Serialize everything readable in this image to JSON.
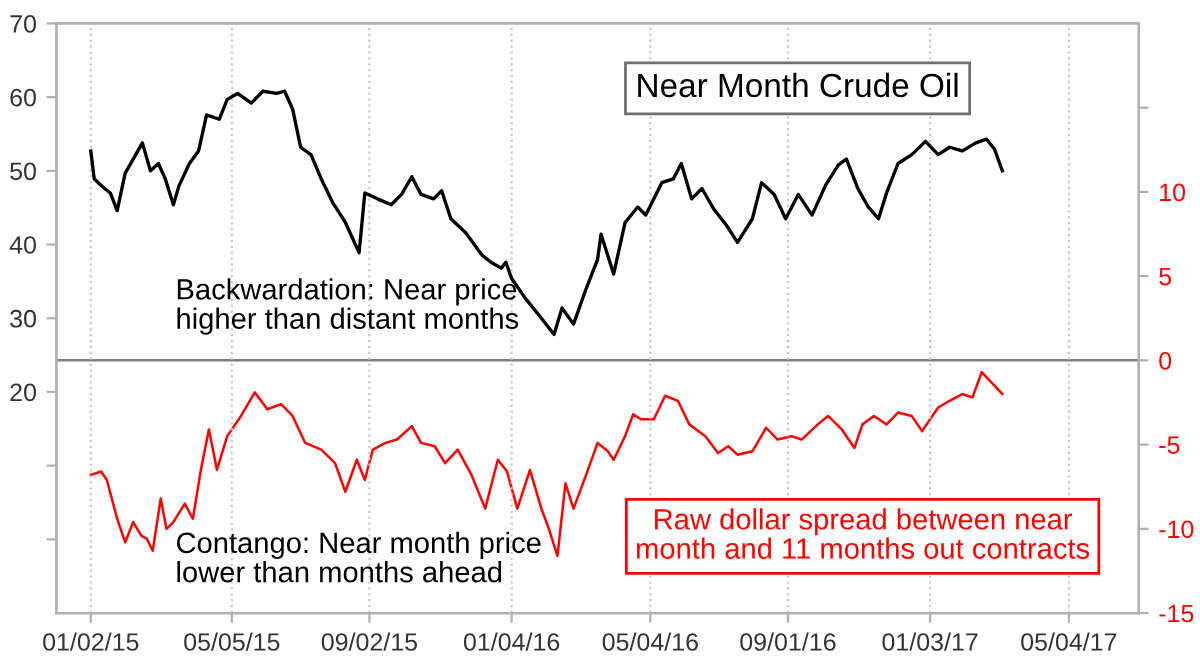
{
  "chart_data": {
    "type": "line",
    "title": "Near Month Crude Oil",
    "xlim": [
      "2014-12-03",
      "2017-07-04"
    ],
    "xticks": [
      {
        "value": "2015-01-02",
        "label": "01/02/15"
      },
      {
        "value": "2015-05-05",
        "label": "05/05/15"
      },
      {
        "value": "2015-09-02",
        "label": "09/02/15"
      },
      {
        "value": "2016-01-04",
        "label": "01/04/16"
      },
      {
        "value": "2016-05-04",
        "label": "05/04/16"
      },
      {
        "value": "2016-09-01",
        "label": "09/01/16"
      },
      {
        "value": "2017-01-03",
        "label": "01/03/17"
      },
      {
        "value": "2017-05-04",
        "label": "05/04/17"
      }
    ],
    "ylim": [
      -10,
      70
    ],
    "yticks": [
      {
        "value": 0,
        "label": null
      },
      {
        "value": 10,
        "label": null
      },
      20,
      30,
      40,
      50,
      60,
      70
    ],
    "y2lim": [
      -15,
      20
    ],
    "y2ticks": [
      -15,
      -10,
      -5,
      0,
      5,
      10,
      {
        "value": 15,
        "label": null
      }
    ],
    "grid": "x",
    "ref_lines": [
      {
        "axis": "y2",
        "value": 0,
        "label": null,
        "color": "#808080"
      }
    ],
    "annotations": [
      "Backwardation: Near price\nhigher than distant months",
      "Contango: Near month price\nlower than months ahead",
      "Raw dollar spread between near\nmonth and 11 months out contracts"
    ],
    "series": [
      {
        "color": "#000000",
        "x": [
          "2015-01-02",
          "2015-01-05",
          "2015-01-14",
          "2015-01-19",
          "2015-01-25",
          "2015-02-01",
          "2015-02-08",
          "2015-02-16",
          "2015-02-23",
          "2015-03-02",
          "2015-03-08",
          "2015-03-15",
          "2015-03-20",
          "2015-03-29",
          "2015-04-06",
          "2015-04-13",
          "2015-04-24",
          "2015-05-01",
          "2015-05-10",
          "2015-05-22",
          "2015-06-01",
          "2015-06-13",
          "2015-06-20",
          "2015-06-27",
          "2015-07-04",
          "2015-07-13",
          "2015-07-22",
          "2015-08-01",
          "2015-08-12",
          "2015-08-24",
          "2015-08-29",
          "2015-09-09",
          "2015-09-21",
          "2015-09-30",
          "2015-10-09",
          "2015-10-17",
          "2015-10-28",
          "2015-11-04",
          "2015-11-12",
          "2015-11-25",
          "2015-12-09",
          "2015-12-17",
          "2015-12-26",
          "2015-12-30",
          "2016-01-04",
          "2016-01-16",
          "2016-01-30",
          "2016-02-10",
          "2016-02-17",
          "2016-02-27",
          "2016-03-09",
          "2016-03-19",
          "2016-03-22",
          "2016-04-02",
          "2016-04-12",
          "2016-04-23",
          "2016-04-30",
          "2016-05-14",
          "2016-05-24",
          "2016-05-31",
          "2016-06-09",
          "2016-06-18",
          "2016-06-28",
          "2016-07-09",
          "2016-07-19",
          "2016-08-01",
          "2016-08-09",
          "2016-08-20",
          "2016-08-30",
          "2016-09-10",
          "2016-09-22",
          "2016-10-04",
          "2016-10-15",
          "2016-10-22",
          "2016-11-01",
          "2016-11-10",
          "2016-11-19",
          "2016-11-26",
          "2016-12-06",
          "2016-12-18",
          "2016-12-30",
          "2017-01-10",
          "2017-01-20",
          "2017-01-31",
          "2017-02-12",
          "2017-02-21",
          "2017-02-28",
          "2017-03-07"
        ],
        "values": [
          52.7,
          48.9,
          47.6,
          47,
          44.6,
          49.7,
          51.6,
          53.8,
          50,
          51,
          48.9,
          45.4,
          48,
          51,
          52.7,
          57.6,
          57,
          59.7,
          60.5,
          59.2,
          60.8,
          60.5,
          60.8,
          58.4,
          53.2,
          52.2,
          48.9,
          45.7,
          43,
          38.9,
          47,
          46.2,
          45.4,
          46.8,
          49.2,
          46.8,
          46.2,
          47.3,
          43.5,
          41.6,
          38.6,
          37.6,
          36.8,
          37.6,
          35.4,
          32.7,
          30,
          27.8,
          31.4,
          29.2,
          34,
          38,
          41.4,
          36,
          43,
          45.1,
          44,
          48.4,
          48.9,
          51,
          46.2,
          47.6,
          44.9,
          42.7,
          40.3,
          43.5,
          48.4,
          46.8,
          43.5,
          46.8,
          44,
          48.1,
          50.8,
          51.6,
          47.6,
          45.1,
          43.5,
          47,
          51,
          52.2,
          54,
          52.2,
          53.2,
          52.7,
          53.8,
          54.3,
          53,
          50
        ]
      },
      {
        "color": "#ff0000",
        "axis": "y2",
        "x": [
          "2015-01-02",
          "2015-01-11",
          "2015-01-16",
          "2015-01-25",
          "2015-02-01",
          "2015-02-08",
          "2015-02-15",
          "2015-02-20",
          "2015-02-25",
          "2015-03-04",
          "2015-03-09",
          "2015-03-15",
          "2015-03-25",
          "2015-04-01",
          "2015-04-08",
          "2015-04-15",
          "2015-04-22",
          "2015-05-01",
          "2015-05-13",
          "2015-05-25",
          "2015-06-05",
          "2015-06-17",
          "2015-06-27",
          "2015-07-08",
          "2015-07-22",
          "2015-08-03",
          "2015-08-12",
          "2015-08-22",
          "2015-08-29",
          "2015-09-05",
          "2015-09-16",
          "2015-09-26",
          "2015-10-09",
          "2015-10-17",
          "2015-10-29",
          "2015-11-07",
          "2015-11-18",
          "2015-11-30",
          "2015-12-12",
          "2015-12-23",
          "2015-12-31",
          "2016-01-09",
          "2016-01-20",
          "2016-01-30",
          "2016-02-06",
          "2016-02-13",
          "2016-02-20",
          "2016-02-27",
          "2016-03-09",
          "2016-03-19",
          "2016-03-28",
          "2016-04-02",
          "2016-04-12",
          "2016-04-19",
          "2016-04-26",
          "2016-05-07",
          "2016-05-17",
          "2016-05-28",
          "2016-06-07",
          "2016-06-21",
          "2016-07-02",
          "2016-07-11",
          "2016-07-19",
          "2016-08-01",
          "2016-08-13",
          "2016-08-23",
          "2016-09-04",
          "2016-09-13",
          "2016-09-27",
          "2016-10-06",
          "2016-10-18",
          "2016-10-29",
          "2016-11-05",
          "2016-11-15",
          "2016-11-26",
          "2016-12-06",
          "2016-12-18",
          "2016-12-27",
          "2017-01-10",
          "2017-01-20",
          "2017-01-31",
          "2017-02-09",
          "2017-02-17",
          "2017-02-24",
          "2017-03-07"
        ],
        "values": [
          -6.8,
          -6.6,
          -7.1,
          -9.4,
          -10.8,
          -9.6,
          -10.4,
          -10.6,
          -11.3,
          -8.2,
          -10,
          -9.6,
          -8.5,
          -9.4,
          -6.5,
          -4.1,
          -6.5,
          -4.5,
          -3.3,
          -1.9,
          -2.9,
          -2.6,
          -3.3,
          -4.9,
          -5.3,
          -6.1,
          -7.8,
          -5.9,
          -7.1,
          -5.3,
          -4.9,
          -4.7,
          -3.9,
          -4.9,
          -5.1,
          -6.1,
          -5.3,
          -6.8,
          -8.8,
          -5.9,
          -6.6,
          -8.8,
          -6.5,
          -8.8,
          -10.1,
          -11.6,
          -7.3,
          -8.8,
          -6.8,
          -4.9,
          -5.4,
          -5.9,
          -4.5,
          -3.2,
          -3.5,
          -3.5,
          -2.1,
          -2.4,
          -3.8,
          -4.5,
          -5.5,
          -5.1,
          -5.6,
          -5.4,
          -4,
          -4.7,
          -4.5,
          -4.7,
          -3.8,
          -3.3,
          -4.1,
          -5.2,
          -3.8,
          -3.3,
          -3.8,
          -3.1,
          -3.3,
          -4.2,
          -2.8,
          -2.4,
          -2,
          -2.2,
          -0.7,
          -1.2,
          -2
        ]
      }
    ]
  }
}
